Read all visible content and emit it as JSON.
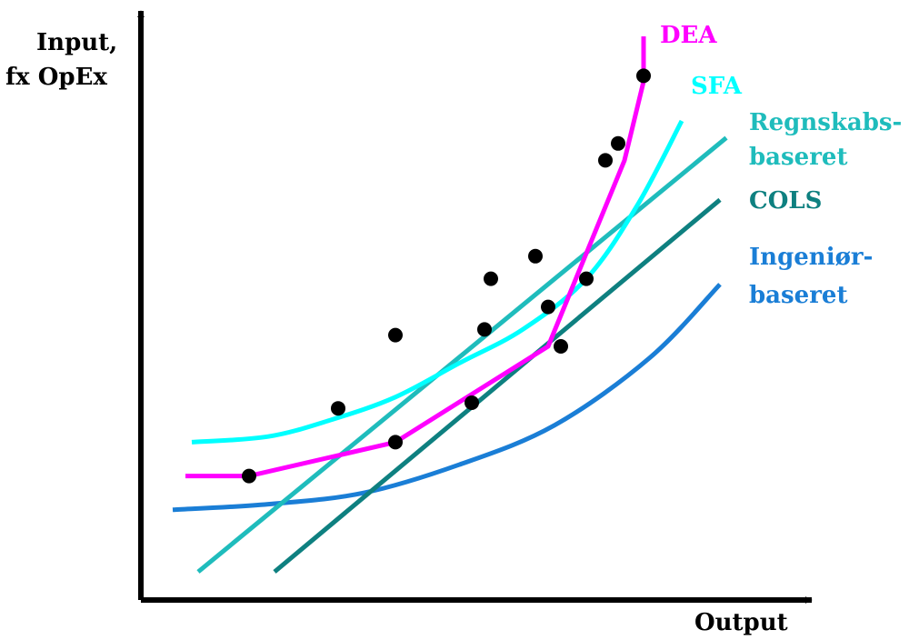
{
  "chart_data": {
    "type": "line",
    "ylabel_lines": [
      "Input,",
      "fx OpEx"
    ],
    "xlabel": "Output",
    "grid": false,
    "legend": "curve labels placed at the right ends of the curves",
    "xlim": [
      0,
      100
    ],
    "ylim": [
      0,
      100
    ],
    "series": [
      {
        "name": "DEA",
        "color": "#ff00ff",
        "kind": "frontier-piecewise",
        "x": [
          7,
          17,
          40,
          64,
          76,
          79,
          79
        ],
        "y": [
          22,
          22,
          28,
          45,
          78,
          92,
          100
        ]
      },
      {
        "name": "SFA",
        "color": "#00ffff",
        "kind": "smooth-curve",
        "x": [
          8,
          20,
          30,
          40,
          50,
          60,
          70,
          78,
          85
        ],
        "y": [
          28,
          29,
          32,
          36,
          42,
          48,
          57,
          70,
          85
        ]
      },
      {
        "name": "Regnskabs-baseret",
        "label_lines": [
          "Regnskabs-",
          "baseret"
        ],
        "color": "#1fbcbc",
        "kind": "straight-line",
        "x": [
          9,
          92
        ],
        "y": [
          5,
          82
        ]
      },
      {
        "name": "COLS",
        "color": "#0e8080",
        "kind": "straight-line",
        "x": [
          21,
          91
        ],
        "y": [
          5,
          71
        ]
      },
      {
        "name": "Ingeniør-baseret",
        "label_lines": [
          "Ingeniør-",
          "baseret"
        ],
        "color": "#1a7ed6",
        "kind": "smooth-curve",
        "x": [
          5,
          20,
          35,
          50,
          65,
          80,
          91
        ],
        "y": [
          16,
          17,
          19,
          24,
          31,
          43,
          56
        ]
      }
    ],
    "points": {
      "name": "observations",
      "color": "#000000",
      "x": [
        17,
        31,
        40,
        40,
        52,
        54,
        55,
        62,
        64,
        66,
        70,
        73,
        75,
        79
      ],
      "y": [
        22,
        34,
        28,
        47,
        35,
        48,
        57,
        61,
        52,
        45,
        57,
        78,
        81,
        93
      ]
    }
  }
}
